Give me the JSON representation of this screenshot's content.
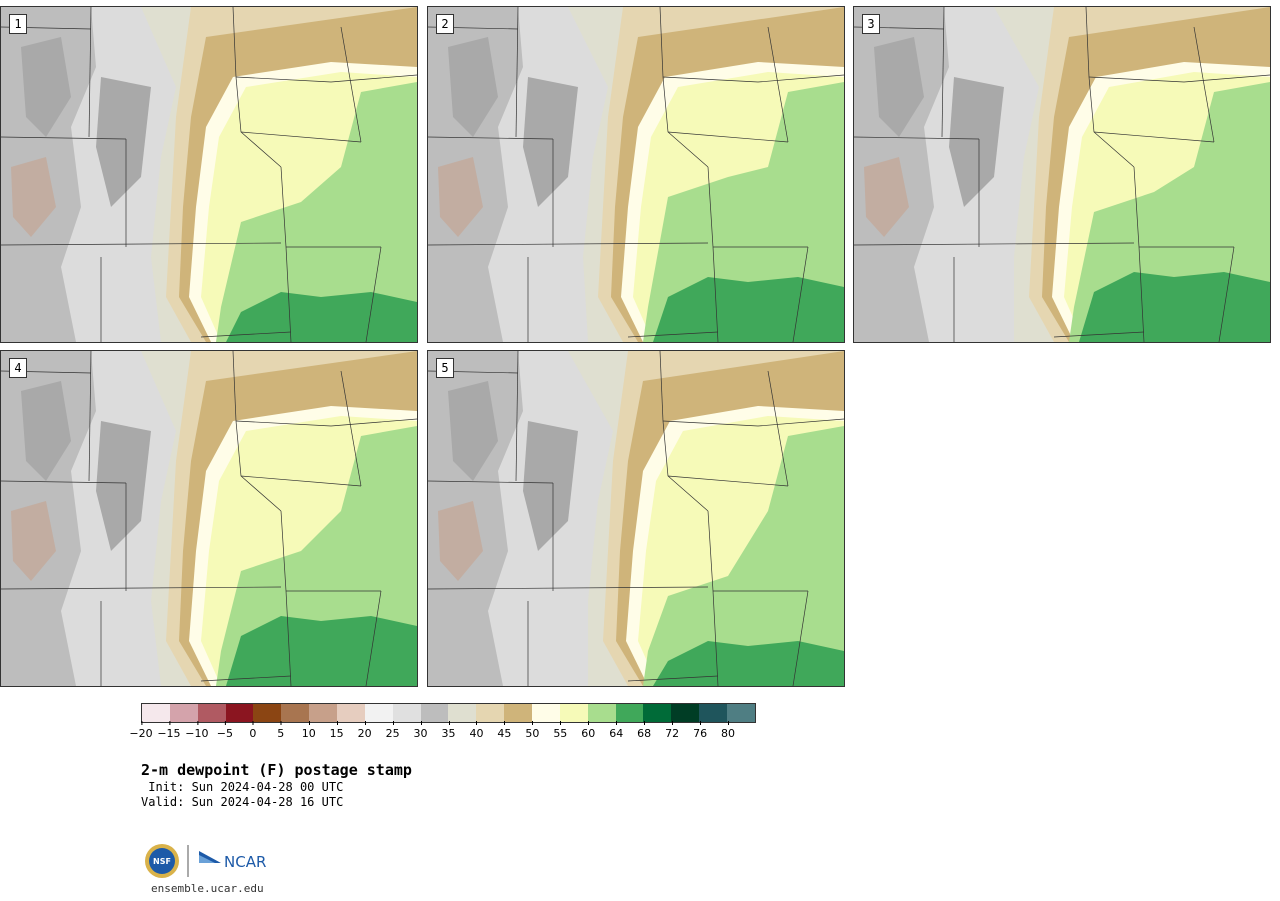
{
  "product": {
    "title": "2-m dewpoint (F) postage stamp",
    "init": " Init: Sun 2024-04-28 00 UTC",
    "valid": "Valid: Sun 2024-04-28 16 UTC",
    "site": "ensemble.ucar.edu",
    "logos": [
      "NSF",
      "NCAR"
    ]
  },
  "panels": [
    {
      "label": "1"
    },
    {
      "label": "2"
    },
    {
      "label": "3"
    },
    {
      "label": "4"
    },
    {
      "label": "5"
    }
  ],
  "colorbar": {
    "units": "F",
    "colors": [
      "#f5e8ec",
      "#d4a3ab",
      "#b05a62",
      "#8b1520",
      "#8b4513",
      "#a87550",
      "#c7a08a",
      "#e6cdbf",
      "#f2f2f2",
      "#e0e0e0",
      "#bdbdbd",
      "#dfdfd0",
      "#e5d6b1",
      "#cfb47a",
      "#fffde8",
      "#f6fab8",
      "#a8dd8e",
      "#40a85a",
      "#006b38",
      "#003d25",
      "#1f555c",
      "#4f7e83"
    ],
    "ticks": [
      "−20",
      "−15",
      "−10",
      "−5",
      "0",
      "5",
      "10",
      "15",
      "20",
      "25",
      "30",
      "35",
      "40",
      "45",
      "50",
      "55",
      "60",
      "64",
      "68",
      "72",
      "76",
      "80"
    ]
  },
  "colors": {
    "mountain_gray": "#a9a9a9",
    "plains_tan": "#cfb47a",
    "moist_green": "#40a85a",
    "border_line": "#333333"
  }
}
